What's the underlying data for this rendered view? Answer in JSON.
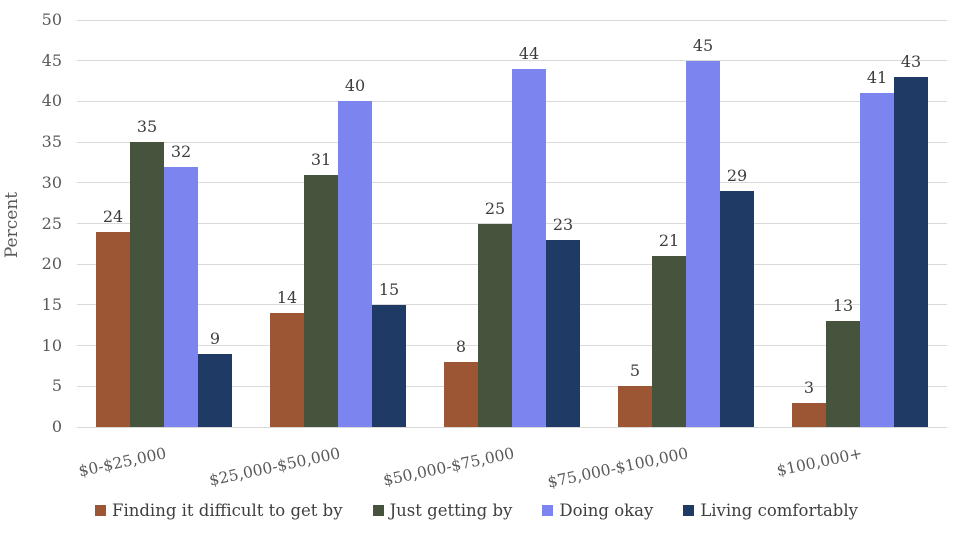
{
  "chart_data": {
    "type": "bar",
    "title": "",
    "xlabel": "",
    "ylabel": "Percent",
    "ylim": [
      0,
      50
    ],
    "ytick_step": 5,
    "grid": true,
    "legend_position": "bottom",
    "data_labels": true,
    "categories": [
      "$0-$25,000",
      "$25,000-$50,000",
      "$50,000-$75,000",
      "$75,000-$100,000",
      "$100,000+"
    ],
    "series": [
      {
        "name": "Finding it difficult to get by",
        "color": "#9C5633",
        "values": [
          24,
          14,
          8,
          5,
          3
        ]
      },
      {
        "name": "Just getting by",
        "color": "#46543E",
        "values": [
          35,
          31,
          25,
          21,
          13
        ]
      },
      {
        "name": "Doing okay",
        "color": "#7C84F0",
        "values": [
          32,
          40,
          44,
          45,
          41
        ]
      },
      {
        "name": "Living comfortably",
        "color": "#203A66",
        "values": [
          9,
          15,
          23,
          29,
          43
        ]
      }
    ],
    "colors": {
      "gridline": "#DADADA",
      "axis_text": "#595959",
      "data_label": "#3D3D3D",
      "legend_text": "#3F3F3F",
      "background": "#FFFFFF"
    }
  }
}
